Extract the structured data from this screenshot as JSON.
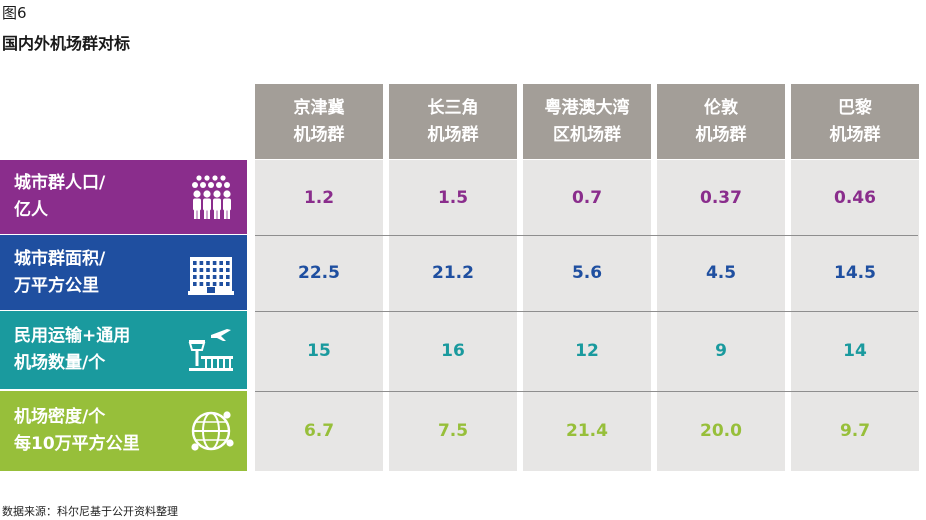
{
  "figure": {
    "label": "图6",
    "title": "国内外机场群对标",
    "source": "数据来源：科尔尼基于公开资料整理"
  },
  "chart_data": {
    "type": "table",
    "columns": [
      {
        "line1": "京津冀",
        "line2": "机场群"
      },
      {
        "line1": "长三角",
        "line2": "机场群"
      },
      {
        "line1": "粤港澳大湾",
        "line2": "区机场群"
      },
      {
        "line1": "伦敦",
        "line2": "机场群"
      },
      {
        "line1": "巴黎",
        "line2": "机场群"
      }
    ],
    "rows": [
      {
        "line1": "城市群人口/",
        "line2": "亿人",
        "icon": "people-group-icon",
        "color": "#8a2d8c",
        "values": [
          "1.2",
          "1.5",
          "0.7",
          "0.37",
          "0.46"
        ]
      },
      {
        "line1": "城市群面积/",
        "line2": "万平方公里",
        "icon": "building-icon",
        "color": "#1f4fa0",
        "values": [
          "22.5",
          "21.2",
          "5.6",
          "4.5",
          "14.5"
        ]
      },
      {
        "line1": "民用运输+通用",
        "line2": "机场数量/个",
        "icon": "airport-tower-icon",
        "color": "#1a9a9e",
        "values": [
          "15",
          "16",
          "12",
          "9",
          "14"
        ]
      },
      {
        "line1": "机场密度/个",
        "line2": "每10万平方公里",
        "icon": "globe-network-icon",
        "color": "#97bf3a",
        "values": [
          "6.7",
          "7.5",
          "21.4",
          "20.0",
          "9.7"
        ]
      }
    ]
  }
}
